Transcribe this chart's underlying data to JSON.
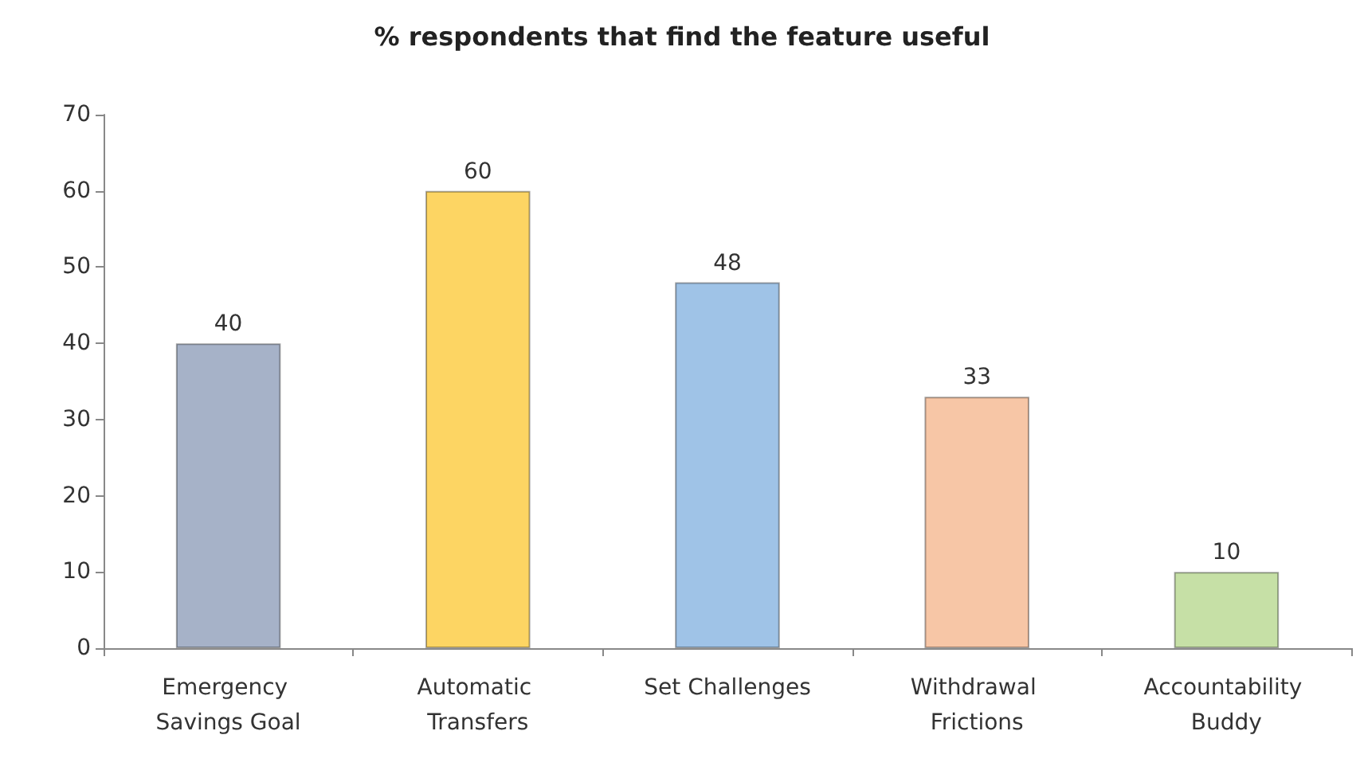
{
  "chart_data": {
    "type": "bar",
    "title": "% respondents that find the feature useful",
    "categories": [
      "Emergency Savings Goal",
      "Automatic Transfers",
      "Set Challenges",
      "Withdrawal Frictions",
      "Accountability Buddy"
    ],
    "values": [
      40,
      60,
      48,
      33,
      10
    ],
    "colors": [
      "#a6b2c8",
      "#fdd563",
      "#9fc3e7",
      "#f7c6a6",
      "#c6e0a6"
    ],
    "ylim": [
      0,
      70
    ],
    "yticks": [
      0,
      10,
      20,
      30,
      40,
      50,
      60,
      70
    ],
    "grid": false,
    "data_labels": true
  }
}
